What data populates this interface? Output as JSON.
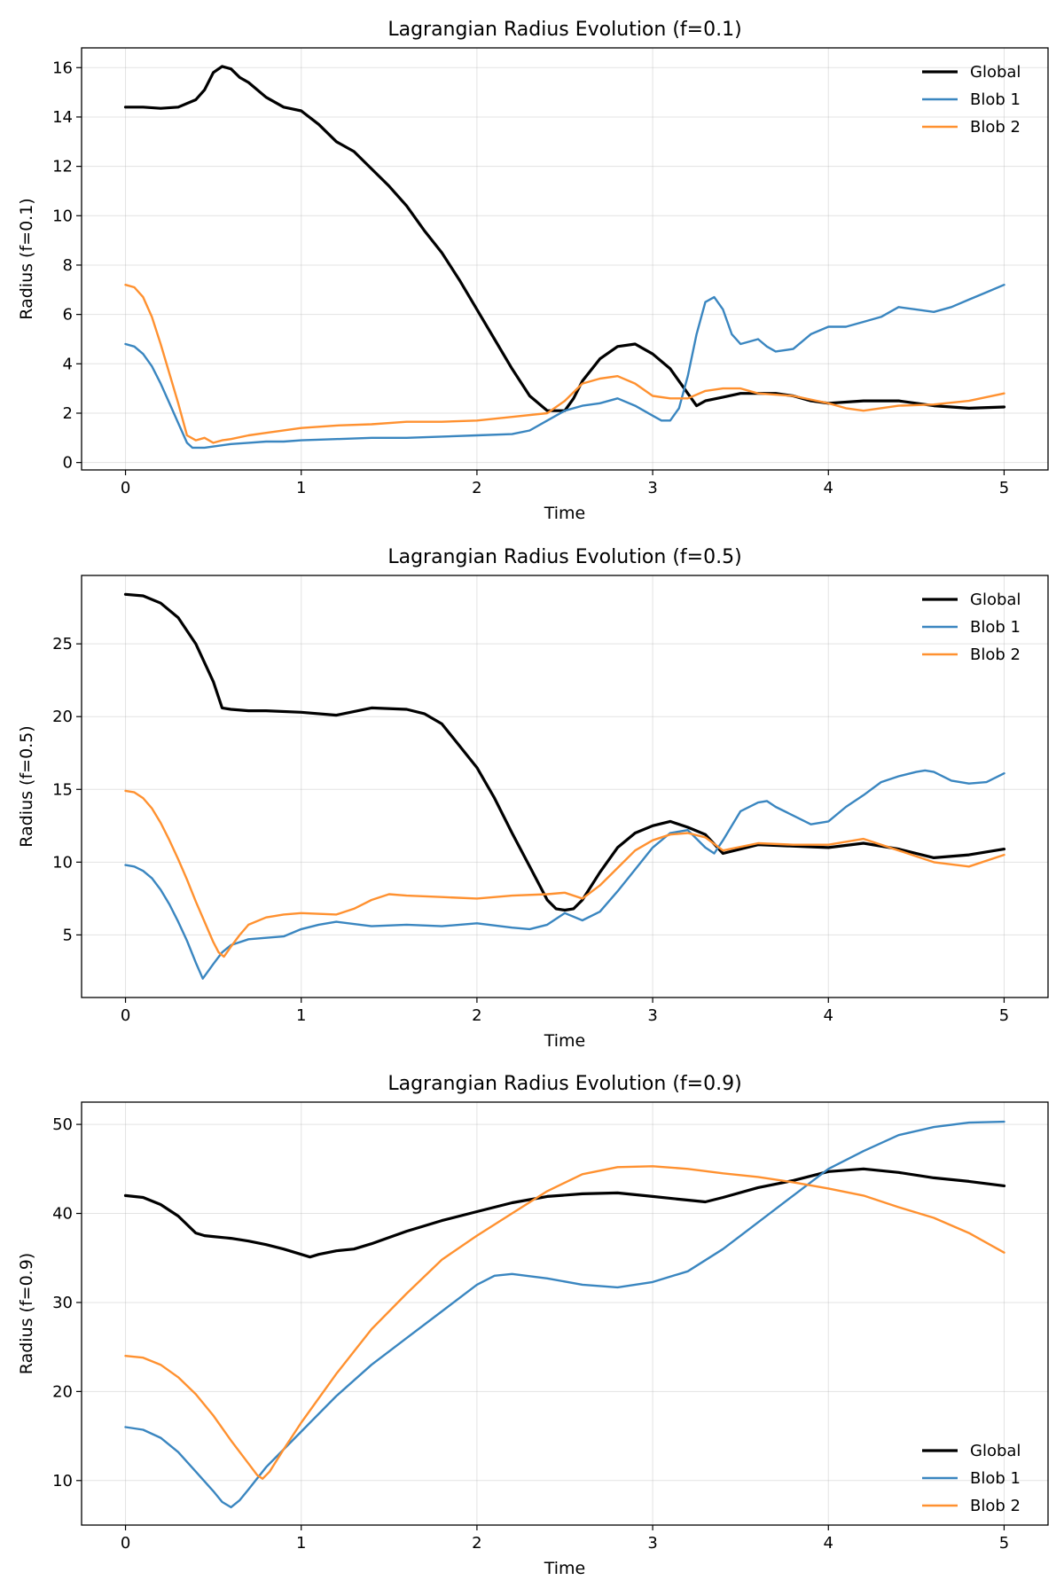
{
  "chart_data": [
    {
      "type": "line",
      "title": "Lagrangian Radius Evolution (f=0.1)",
      "xlabel": "Time",
      "ylabel": "Radius (f=0.1)",
      "xlim": [
        -0.25,
        5.25
      ],
      "ylim": [
        -0.3,
        16.8
      ],
      "xticks": [
        0,
        1,
        2,
        3,
        4,
        5
      ],
      "yticks": [
        0,
        2,
        4,
        6,
        8,
        10,
        12,
        14,
        16
      ],
      "legend": "top-right",
      "grid": true,
      "series": [
        {
          "name": "Global",
          "color": "#000000",
          "width": 3.2,
          "x": [
            0,
            0.1,
            0.2,
            0.3,
            0.4,
            0.45,
            0.5,
            0.55,
            0.6,
            0.65,
            0.7,
            0.8,
            0.9,
            1.0,
            1.1,
            1.2,
            1.3,
            1.4,
            1.5,
            1.6,
            1.7,
            1.8,
            1.9,
            2.0,
            2.1,
            2.2,
            2.3,
            2.4,
            2.5,
            2.55,
            2.6,
            2.7,
            2.8,
            2.9,
            3.0,
            3.1,
            3.2,
            3.25,
            3.3,
            3.4,
            3.5,
            3.6,
            3.7,
            3.8,
            3.9,
            4.0,
            4.2,
            4.4,
            4.6,
            4.8,
            5.0
          ],
          "y": [
            14.4,
            14.4,
            14.35,
            14.4,
            14.7,
            15.1,
            15.8,
            16.05,
            15.95,
            15.6,
            15.4,
            14.8,
            14.4,
            14.25,
            13.7,
            13.0,
            12.6,
            11.9,
            11.2,
            10.4,
            9.4,
            8.5,
            7.4,
            6.2,
            5.0,
            3.8,
            2.7,
            2.1,
            2.1,
            2.6,
            3.3,
            4.2,
            4.7,
            4.8,
            4.4,
            3.8,
            2.8,
            2.3,
            2.5,
            2.65,
            2.8,
            2.8,
            2.8,
            2.7,
            2.5,
            2.4,
            2.5,
            2.5,
            2.3,
            2.2,
            2.25
          ]
        },
        {
          "name": "Blob 1",
          "color": "#3a86c0",
          "width": 2.4,
          "x": [
            0,
            0.05,
            0.1,
            0.15,
            0.2,
            0.25,
            0.3,
            0.35,
            0.38,
            0.4,
            0.45,
            0.5,
            0.6,
            0.7,
            0.8,
            0.9,
            1.0,
            1.2,
            1.4,
            1.6,
            1.8,
            2.0,
            2.2,
            2.3,
            2.4,
            2.5,
            2.6,
            2.7,
            2.8,
            2.9,
            3.0,
            3.05,
            3.1,
            3.15,
            3.2,
            3.25,
            3.3,
            3.35,
            3.4,
            3.45,
            3.5,
            3.6,
            3.65,
            3.7,
            3.8,
            3.9,
            4.0,
            4.1,
            4.2,
            4.3,
            4.4,
            4.5,
            4.6,
            4.7,
            4.8,
            4.9,
            5.0
          ],
          "y": [
            4.8,
            4.7,
            4.4,
            3.9,
            3.2,
            2.4,
            1.6,
            0.8,
            0.6,
            0.6,
            0.6,
            0.65,
            0.75,
            0.8,
            0.85,
            0.85,
            0.9,
            0.95,
            1.0,
            1.0,
            1.05,
            1.1,
            1.15,
            1.3,
            1.7,
            2.1,
            2.3,
            2.4,
            2.6,
            2.3,
            1.9,
            1.7,
            1.7,
            2.2,
            3.5,
            5.2,
            6.5,
            6.7,
            6.2,
            5.2,
            4.8,
            5.0,
            4.7,
            4.5,
            4.6,
            5.2,
            5.5,
            5.5,
            5.7,
            5.9,
            6.3,
            6.2,
            6.1,
            6.3,
            6.6,
            6.9,
            7.2
          ]
        },
        {
          "name": "Blob 2",
          "color": "#ff9130",
          "width": 2.4,
          "x": [
            0,
            0.05,
            0.1,
            0.15,
            0.2,
            0.25,
            0.3,
            0.35,
            0.4,
            0.45,
            0.5,
            0.55,
            0.6,
            0.7,
            0.8,
            1.0,
            1.2,
            1.4,
            1.6,
            1.8,
            2.0,
            2.2,
            2.4,
            2.5,
            2.6,
            2.7,
            2.8,
            2.9,
            3.0,
            3.1,
            3.2,
            3.3,
            3.4,
            3.5,
            3.6,
            3.8,
            4.0,
            4.1,
            4.2,
            4.4,
            4.6,
            4.8,
            5.0
          ],
          "y": [
            7.2,
            7.1,
            6.7,
            5.9,
            4.8,
            3.6,
            2.4,
            1.1,
            0.9,
            1.0,
            0.8,
            0.9,
            0.95,
            1.1,
            1.2,
            1.4,
            1.5,
            1.55,
            1.65,
            1.65,
            1.7,
            1.85,
            2.0,
            2.5,
            3.2,
            3.4,
            3.5,
            3.2,
            2.7,
            2.6,
            2.6,
            2.9,
            3.0,
            3.0,
            2.8,
            2.7,
            2.4,
            2.2,
            2.1,
            2.3,
            2.35,
            2.5,
            2.8
          ]
        }
      ]
    },
    {
      "type": "line",
      "title": "Lagrangian Radius Evolution (f=0.5)",
      "xlabel": "Time",
      "ylabel": "Radius (f=0.5)",
      "xlim": [
        -0.25,
        5.25
      ],
      "ylim": [
        0.7,
        29.7
      ],
      "xticks": [
        0,
        1,
        2,
        3,
        4,
        5
      ],
      "yticks": [
        5,
        10,
        15,
        20,
        25
      ],
      "legend": "top-right",
      "grid": true,
      "series": [
        {
          "name": "Global",
          "color": "#000000",
          "width": 3.2,
          "x": [
            0,
            0.1,
            0.2,
            0.3,
            0.4,
            0.5,
            0.55,
            0.6,
            0.7,
            0.8,
            1.0,
            1.2,
            1.4,
            1.6,
            1.7,
            1.8,
            1.9,
            2.0,
            2.1,
            2.2,
            2.3,
            2.4,
            2.45,
            2.5,
            2.55,
            2.6,
            2.7,
            2.8,
            2.9,
            3.0,
            3.1,
            3.2,
            3.3,
            3.4,
            3.5,
            3.6,
            3.8,
            4.0,
            4.2,
            4.4,
            4.6,
            4.8,
            5.0
          ],
          "y": [
            28.4,
            28.3,
            27.8,
            26.8,
            25.0,
            22.4,
            20.6,
            20.5,
            20.4,
            20.4,
            20.3,
            20.1,
            20.6,
            20.5,
            20.2,
            19.5,
            18.0,
            16.5,
            14.4,
            12.0,
            9.7,
            7.4,
            6.8,
            6.7,
            6.8,
            7.4,
            9.3,
            11.0,
            12.0,
            12.5,
            12.8,
            12.4,
            11.9,
            10.6,
            10.9,
            11.2,
            11.1,
            11.0,
            11.3,
            10.9,
            10.3,
            10.5,
            10.9
          ]
        },
        {
          "name": "Blob 1",
          "color": "#3a86c0",
          "width": 2.4,
          "x": [
            0,
            0.05,
            0.1,
            0.15,
            0.2,
            0.25,
            0.3,
            0.35,
            0.4,
            0.44,
            0.5,
            0.55,
            0.6,
            0.7,
            0.8,
            0.9,
            1.0,
            1.1,
            1.2,
            1.4,
            1.6,
            1.8,
            2.0,
            2.2,
            2.3,
            2.4,
            2.5,
            2.6,
            2.7,
            2.8,
            2.9,
            3.0,
            3.1,
            3.2,
            3.3,
            3.35,
            3.4,
            3.5,
            3.6,
            3.65,
            3.7,
            3.8,
            3.9,
            4.0,
            4.1,
            4.2,
            4.3,
            4.4,
            4.5,
            4.55,
            4.6,
            4.7,
            4.8,
            4.9,
            5.0
          ],
          "y": [
            9.8,
            9.7,
            9.4,
            8.9,
            8.1,
            7.1,
            5.9,
            4.6,
            3.1,
            2.0,
            3.0,
            3.8,
            4.3,
            4.7,
            4.8,
            4.9,
            5.4,
            5.7,
            5.9,
            5.6,
            5.7,
            5.6,
            5.8,
            5.5,
            5.4,
            5.7,
            6.5,
            6.0,
            6.6,
            8.0,
            9.5,
            11.0,
            12.0,
            12.2,
            11.0,
            10.6,
            11.5,
            13.5,
            14.1,
            14.2,
            13.8,
            13.2,
            12.6,
            12.8,
            13.8,
            14.6,
            15.5,
            15.9,
            16.2,
            16.3,
            16.2,
            15.6,
            15.4,
            15.5,
            16.1
          ]
        },
        {
          "name": "Blob 2",
          "color": "#ff9130",
          "width": 2.4,
          "x": [
            0,
            0.05,
            0.1,
            0.15,
            0.2,
            0.25,
            0.3,
            0.35,
            0.4,
            0.45,
            0.5,
            0.53,
            0.56,
            0.6,
            0.65,
            0.7,
            0.8,
            0.9,
            1.0,
            1.2,
            1.3,
            1.4,
            1.5,
            1.6,
            1.8,
            2.0,
            2.2,
            2.4,
            2.5,
            2.6,
            2.7,
            2.8,
            2.9,
            3.0,
            3.1,
            3.2,
            3.3,
            3.4,
            3.6,
            3.8,
            4.0,
            4.2,
            4.4,
            4.6,
            4.8,
            5.0
          ],
          "y": [
            14.9,
            14.8,
            14.4,
            13.7,
            12.7,
            11.5,
            10.2,
            8.8,
            7.3,
            5.9,
            4.5,
            3.8,
            3.5,
            4.2,
            5.0,
            5.7,
            6.2,
            6.4,
            6.5,
            6.4,
            6.8,
            7.4,
            7.8,
            7.7,
            7.6,
            7.5,
            7.7,
            7.8,
            7.9,
            7.5,
            8.4,
            9.6,
            10.8,
            11.5,
            11.9,
            12.0,
            11.7,
            10.8,
            11.3,
            11.2,
            11.2,
            11.6,
            10.8,
            10.0,
            9.7,
            10.5
          ]
        }
      ]
    },
    {
      "type": "line",
      "title": "Lagrangian Radius Evolution (f=0.9)",
      "xlabel": "Time",
      "ylabel": "Radius (f=0.9)",
      "xlim": [
        -0.25,
        5.25
      ],
      "ylim": [
        5.0,
        52.5
      ],
      "xticks": [
        0,
        1,
        2,
        3,
        4,
        5
      ],
      "yticks": [
        10,
        20,
        30,
        40,
        50
      ],
      "legend": "bottom-right",
      "grid": true,
      "series": [
        {
          "name": "Global",
          "color": "#000000",
          "width": 3.2,
          "x": [
            0,
            0.1,
            0.2,
            0.3,
            0.4,
            0.45,
            0.5,
            0.6,
            0.7,
            0.8,
            0.9,
            1.0,
            1.05,
            1.1,
            1.2,
            1.3,
            1.4,
            1.6,
            1.8,
            2.0,
            2.2,
            2.4,
            2.6,
            2.8,
            3.0,
            3.2,
            3.3,
            3.4,
            3.6,
            3.8,
            4.0,
            4.2,
            4.4,
            4.6,
            4.8,
            5.0
          ],
          "y": [
            42.0,
            41.8,
            41.0,
            39.7,
            37.8,
            37.5,
            37.4,
            37.2,
            36.9,
            36.5,
            36.0,
            35.4,
            35.1,
            35.4,
            35.8,
            36.0,
            36.6,
            38.0,
            39.2,
            40.2,
            41.2,
            41.9,
            42.2,
            42.3,
            41.9,
            41.5,
            41.3,
            41.8,
            42.9,
            43.7,
            44.7,
            45.0,
            44.6,
            44.0,
            43.6,
            43.1
          ]
        },
        {
          "name": "Blob 1",
          "color": "#3a86c0",
          "width": 2.4,
          "x": [
            0,
            0.1,
            0.2,
            0.3,
            0.4,
            0.5,
            0.55,
            0.6,
            0.65,
            0.7,
            0.8,
            1.0,
            1.2,
            1.4,
            1.6,
            1.8,
            2.0,
            2.1,
            2.2,
            2.4,
            2.6,
            2.8,
            3.0,
            3.2,
            3.4,
            3.6,
            3.8,
            4.0,
            4.2,
            4.4,
            4.6,
            4.8,
            5.0
          ],
          "y": [
            16.0,
            15.7,
            14.8,
            13.2,
            11.0,
            8.8,
            7.6,
            7.0,
            7.8,
            9.0,
            11.5,
            15.5,
            19.5,
            23.0,
            26.0,
            29.0,
            32.0,
            33.0,
            33.2,
            32.7,
            32.0,
            31.7,
            32.3,
            33.5,
            36.0,
            39.0,
            42.0,
            45.0,
            47.0,
            48.8,
            49.7,
            50.2,
            50.3
          ]
        },
        {
          "name": "Blob 2",
          "color": "#ff9130",
          "width": 2.4,
          "x": [
            0,
            0.1,
            0.2,
            0.3,
            0.4,
            0.5,
            0.6,
            0.7,
            0.75,
            0.78,
            0.82,
            0.9,
            1.0,
            1.2,
            1.4,
            1.6,
            1.8,
            2.0,
            2.2,
            2.4,
            2.6,
            2.8,
            3.0,
            3.2,
            3.4,
            3.6,
            3.8,
            4.0,
            4.2,
            4.4,
            4.6,
            4.8,
            5.0
          ],
          "y": [
            24.0,
            23.8,
            23.0,
            21.6,
            19.7,
            17.3,
            14.5,
            11.9,
            10.6,
            10.2,
            11.0,
            13.5,
            16.5,
            22.0,
            27.0,
            31.0,
            34.8,
            37.5,
            40.0,
            42.5,
            44.4,
            45.2,
            45.3,
            45.0,
            44.5,
            44.1,
            43.5,
            42.8,
            42.0,
            40.7,
            39.5,
            37.8,
            35.6
          ]
        }
      ]
    }
  ]
}
